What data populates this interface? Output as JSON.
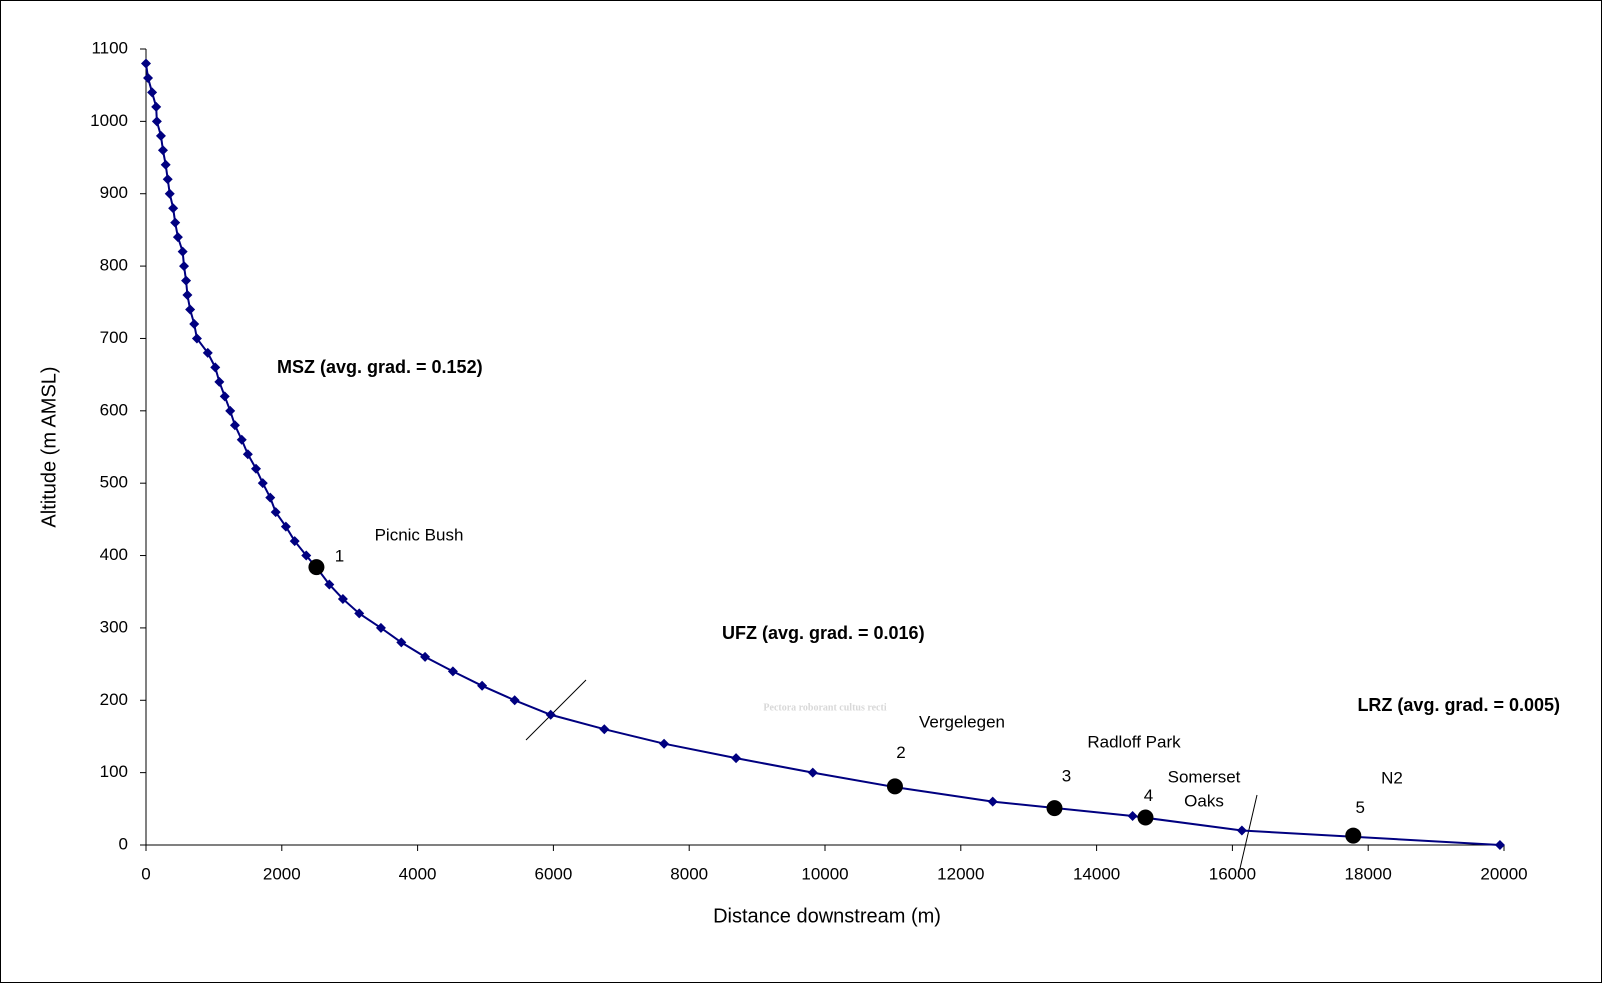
{
  "chart_data": {
    "type": "line",
    "x_label": "Distance downstream (m)",
    "y_label": "Altitude (m AMSL)",
    "xlim": [
      0,
      20000
    ],
    "xticks": [
      0,
      2000,
      4000,
      6000,
      8000,
      10000,
      12000,
      14000,
      16000,
      18000,
      20000
    ],
    "ylim": [
      0,
      1100
    ],
    "yticks": [
      0,
      100,
      200,
      300,
      400,
      500,
      600,
      700,
      800,
      900,
      1000,
      1100
    ],
    "color": "#000080",
    "x": [
      0,
      30,
      90,
      150,
      160,
      220,
      250,
      290,
      320,
      350,
      400,
      430,
      470,
      540,
      560,
      590,
      610,
      650,
      710,
      750,
      910,
      1020,
      1080,
      1160,
      1240,
      1310,
      1410,
      1500,
      1620,
      1720,
      1830,
      1910,
      2060,
      2190,
      2360,
      2540,
      2700,
      2900,
      3140,
      3460,
      3760,
      4110,
      4520,
      4950,
      5430,
      5960,
      6750,
      7630,
      8690,
      9820,
      11030,
      12470,
      14530,
      16140,
      19940
    ],
    "values": [
      1080,
      1060,
      1040,
      1020,
      1000,
      980,
      960,
      940,
      920,
      900,
      880,
      860,
      840,
      820,
      800,
      780,
      760,
      740,
      720,
      700,
      680,
      660,
      640,
      620,
      600,
      580,
      560,
      540,
      520,
      500,
      480,
      460,
      440,
      420,
      400,
      380,
      360,
      340,
      320,
      300,
      280,
      260,
      240,
      220,
      200,
      180,
      160,
      140,
      120,
      100,
      80,
      60,
      40,
      20,
      0
    ],
    "sites": {
      "color": "#000000",
      "x": [
        2510,
        11030,
        13380,
        14720,
        17780
      ],
      "values": [
        384,
        81,
        51,
        38,
        13
      ],
      "labels": [
        "1",
        "2",
        "3",
        "4",
        "5"
      ]
    },
    "annotations": [
      "Picnic Bush",
      "Vergelegen",
      "Radloff Park",
      "Somerset",
      "Oaks",
      "N2"
    ],
    "zones": [
      "MSZ (avg. grad. = 0.152)",
      "UFZ (avg. grad. = 0.016)",
      "LRZ (avg. grad. = 0.005)"
    ],
    "watermark": "Pectora roborant cultus recti"
  }
}
